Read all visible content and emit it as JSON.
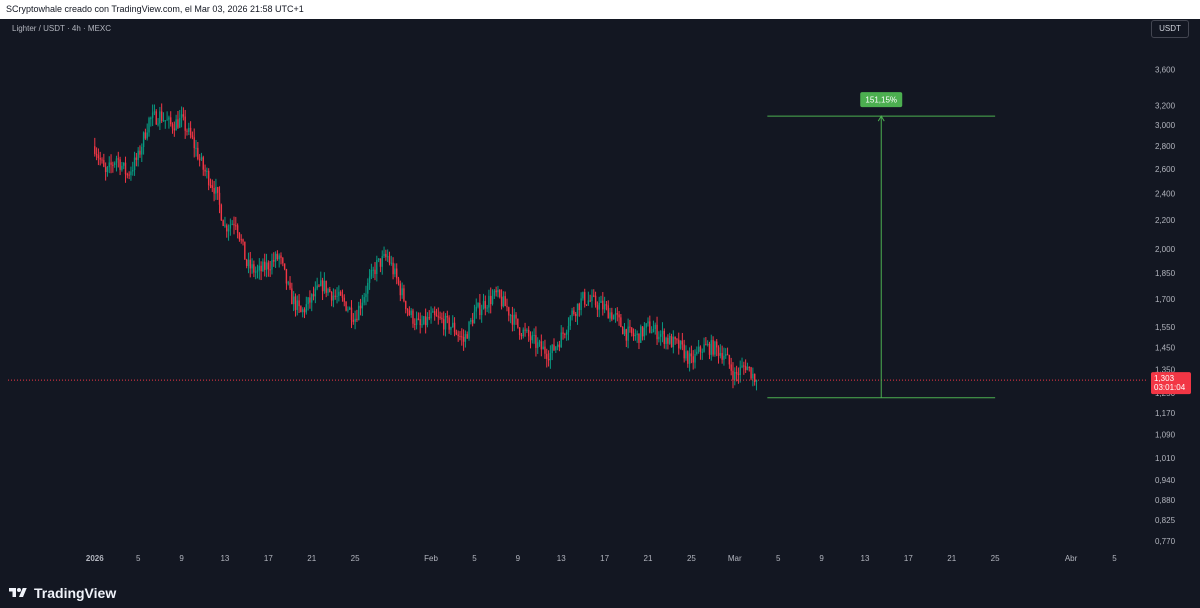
{
  "header": {
    "attribution": "SCryptowhale creado con TradingView.com, el Mar 03, 2026 21:58 UTC+1"
  },
  "chart_header": {
    "symbol": "Lighter / USDT · 4h · MEXC",
    "currency_button": "USDT"
  },
  "price_tag": {
    "price": "1,303",
    "countdown": "03:01:04"
  },
  "measure": {
    "label": "151,15%",
    "from_price": 1.23,
    "to_price": 3.09
  },
  "footer": {
    "brand": "TradingView"
  },
  "colors": {
    "up": "#089981",
    "down": "#f23645",
    "measure": "#4caf50",
    "background": "#131722"
  },
  "chart_data": {
    "type": "candlestick",
    "interval": "4h",
    "scale": "log",
    "y_ticks": [
      "3,600",
      "3,200",
      "3,000",
      "2,800",
      "2,600",
      "2,400",
      "2,200",
      "2,000",
      "1,850",
      "1,700",
      "1,550",
      "1,450",
      "1,350",
      "1,250",
      "1,170",
      "1,090",
      "1,010",
      "0,940",
      "0,880",
      "0,825",
      "0,770"
    ],
    "y_tick_values": [
      3.6,
      3.2,
      3.0,
      2.8,
      2.6,
      2.4,
      2.2,
      2.0,
      1.85,
      1.7,
      1.55,
      1.45,
      1.35,
      1.25,
      1.17,
      1.09,
      1.01,
      0.94,
      0.88,
      0.825,
      0.77
    ],
    "x_ticks": [
      {
        "label": "2026",
        "bold": true,
        "date": "2026-01-01"
      },
      {
        "label": "5",
        "date": "2026-01-05"
      },
      {
        "label": "9",
        "date": "2026-01-09"
      },
      {
        "label": "13",
        "date": "2026-01-13"
      },
      {
        "label": "17",
        "date": "2026-01-17"
      },
      {
        "label": "21",
        "date": "2026-01-21"
      },
      {
        "label": "25",
        "date": "2026-01-25"
      },
      {
        "label": "Feb",
        "date": "2026-02-01"
      },
      {
        "label": "5",
        "date": "2026-02-05"
      },
      {
        "label": "9",
        "date": "2026-02-09"
      },
      {
        "label": "13",
        "date": "2026-02-13"
      },
      {
        "label": "17",
        "date": "2026-02-17"
      },
      {
        "label": "21",
        "date": "2026-02-21"
      },
      {
        "label": "25",
        "date": "2026-02-25"
      },
      {
        "label": "Mar",
        "date": "2026-03-01"
      },
      {
        "label": "5",
        "date": "2026-03-05"
      },
      {
        "label": "9",
        "date": "2026-03-09"
      },
      {
        "label": "13",
        "date": "2026-03-13"
      },
      {
        "label": "17",
        "date": "2026-03-17"
      },
      {
        "label": "21",
        "date": "2026-03-21"
      },
      {
        "label": "25",
        "date": "2026-03-25"
      },
      {
        "label": "Abr",
        "date": "2026-04-01"
      },
      {
        "label": "5",
        "date": "2026-04-05"
      }
    ],
    "x_range": [
      "2025-12-24",
      "2026-04-08"
    ],
    "y_range": [
      0.75,
      3.95
    ],
    "series_anchors": [
      [
        "2026-01-01",
        2.8
      ],
      [
        "2026-01-02",
        2.55
      ],
      [
        "2026-01-03",
        2.7
      ],
      [
        "2026-01-04",
        2.55
      ],
      [
        "2026-01-05",
        2.7
      ],
      [
        "2026-01-06",
        3.05
      ],
      [
        "2026-01-07",
        3.1
      ],
      [
        "2026-01-08",
        3.0
      ],
      [
        "2026-01-09",
        3.05
      ],
      [
        "2026-01-10",
        2.85
      ],
      [
        "2026-01-11",
        2.6
      ],
      [
        "2026-01-12",
        2.45
      ],
      [
        "2026-01-13",
        2.15
      ],
      [
        "2026-01-14",
        2.2
      ],
      [
        "2026-01-15",
        1.9
      ],
      [
        "2026-01-16",
        1.85
      ],
      [
        "2026-01-17",
        1.9
      ],
      [
        "2026-01-18",
        1.95
      ],
      [
        "2026-01-19",
        1.72
      ],
      [
        "2026-01-20",
        1.62
      ],
      [
        "2026-01-21",
        1.7
      ],
      [
        "2026-01-22",
        1.78
      ],
      [
        "2026-01-23",
        1.72
      ],
      [
        "2026-01-24",
        1.68
      ],
      [
        "2026-01-25",
        1.6
      ],
      [
        "2026-01-26",
        1.75
      ],
      [
        "2026-01-27",
        1.9
      ],
      [
        "2026-01-28",
        1.95
      ],
      [
        "2026-01-29",
        1.78
      ],
      [
        "2026-01-30",
        1.62
      ],
      [
        "2026-01-31",
        1.55
      ],
      [
        "2026-02-01",
        1.6
      ],
      [
        "2026-02-02",
        1.58
      ],
      [
        "2026-02-03",
        1.55
      ],
      [
        "2026-02-04",
        1.48
      ],
      [
        "2026-02-05",
        1.62
      ],
      [
        "2026-02-06",
        1.68
      ],
      [
        "2026-02-07",
        1.72
      ],
      [
        "2026-02-08",
        1.65
      ],
      [
        "2026-02-09",
        1.55
      ],
      [
        "2026-02-10",
        1.5
      ],
      [
        "2026-02-11",
        1.45
      ],
      [
        "2026-02-12",
        1.42
      ],
      [
        "2026-02-13",
        1.5
      ],
      [
        "2026-02-14",
        1.62
      ],
      [
        "2026-02-15",
        1.7
      ],
      [
        "2026-02-16",
        1.68
      ],
      [
        "2026-02-17",
        1.65
      ],
      [
        "2026-02-18",
        1.6
      ],
      [
        "2026-02-19",
        1.52
      ],
      [
        "2026-02-20",
        1.5
      ],
      [
        "2026-02-21",
        1.55
      ],
      [
        "2026-02-22",
        1.52
      ],
      [
        "2026-02-23",
        1.48
      ],
      [
        "2026-02-24",
        1.45
      ],
      [
        "2026-02-25",
        1.38
      ],
      [
        "2026-02-26",
        1.45
      ],
      [
        "2026-02-27",
        1.45
      ],
      [
        "2026-02-28",
        1.42
      ],
      [
        "2026-03-01",
        1.32
      ],
      [
        "2026-03-02",
        1.37
      ],
      [
        "2026-03-03",
        1.303
      ]
    ]
  }
}
